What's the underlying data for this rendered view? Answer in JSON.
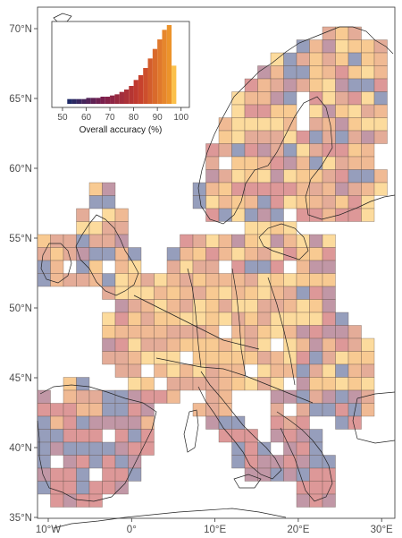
{
  "map": {
    "lat_labels": [
      "70°N",
      "65°N",
      "60°N",
      "55°N",
      "50°N",
      "45°N",
      "40°N",
      "35°N"
    ],
    "lon_labels": [
      "10°W",
      "0°",
      "10°E",
      "20°E",
      "30°E"
    ],
    "lat_values": [
      70,
      65,
      60,
      55,
      50,
      45,
      40,
      35
    ],
    "lon_values": [
      -10,
      0,
      10,
      20,
      30
    ]
  },
  "legend": {
    "title": "Overall accuracy (%)",
    "ticks": [
      "50",
      "60",
      "70",
      "80",
      "90",
      "100"
    ],
    "tick_values": [
      50,
      60,
      70,
      80,
      90,
      100
    ],
    "bin_counts": [
      4,
      4,
      4,
      4,
      5,
      5,
      5,
      6,
      6,
      7,
      8,
      10,
      12,
      15,
      20,
      24,
      30,
      38,
      46,
      54,
      62,
      66,
      32
    ],
    "bin_start": 52,
    "bin_width": 2
  },
  "colors": {
    "low": "#1f2a66",
    "mid_low": "#7d1f4c",
    "mid": "#c43b2d",
    "high": "#f2a12b",
    "top": "#fbc04a",
    "cell_palette": [
      "#fcd68f",
      "#f7c383",
      "#eeb085",
      "#e0a08a",
      "#d88a8a",
      "#b8899a",
      "#8891b3"
    ]
  }
}
